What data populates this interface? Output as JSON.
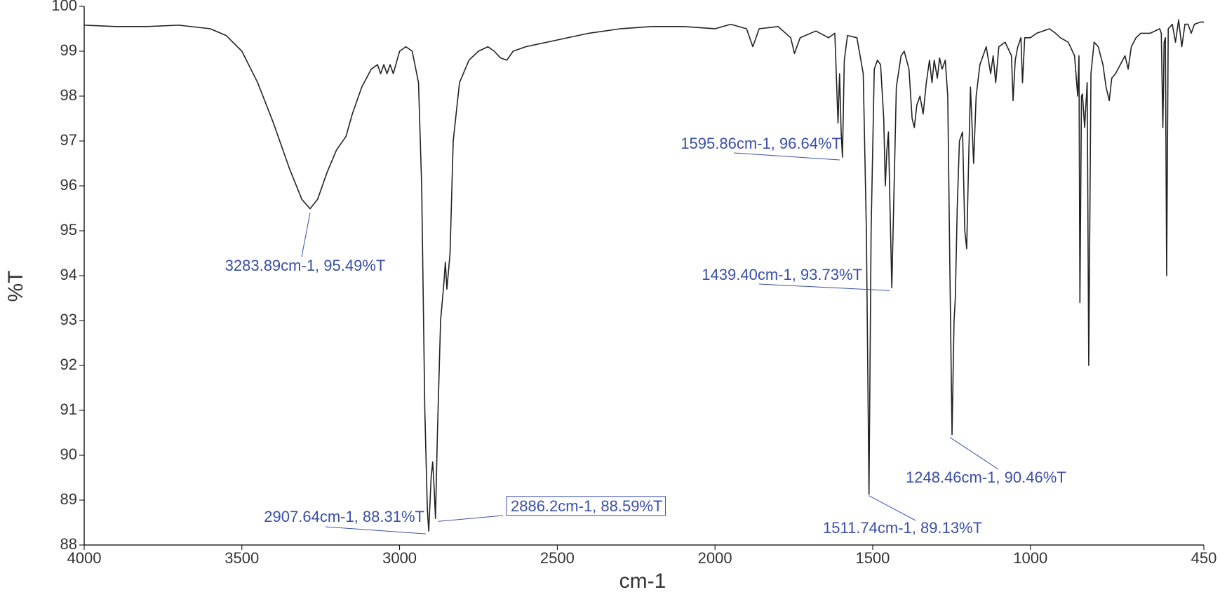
{
  "chart_data": {
    "type": "line",
    "x_label": "cm-1",
    "y_label": "%T",
    "color": "#222222",
    "annotation_color": "#3a4fa8",
    "xlim": [
      4000,
      450
    ],
    "ylim": [
      88,
      100
    ],
    "xticks": [
      4000,
      3500,
      3000,
      2500,
      2000,
      1500,
      1000,
      450
    ],
    "yticks": [
      88,
      89,
      90,
      91,
      92,
      93,
      94,
      95,
      96,
      97,
      98,
      99,
      100
    ],
    "x": [
      4000,
      3900,
      3800,
      3700,
      3600,
      3550,
      3500,
      3450,
      3400,
      3350,
      3310,
      3283.89,
      3260,
      3230,
      3200,
      3170,
      3150,
      3120,
      3090,
      3070,
      3060,
      3050,
      3040,
      3030,
      3020,
      3000,
      2980,
      2960,
      2940,
      2930,
      2920,
      2912,
      2907.64,
      2900,
      2895,
      2890,
      2886.2,
      2880,
      2870,
      2860,
      2855,
      2850,
      2840,
      2830,
      2810,
      2780,
      2750,
      2720,
      2700,
      2680,
      2660,
      2640,
      2600,
      2500,
      2400,
      2300,
      2200,
      2100,
      2000,
      1950,
      1900,
      1880,
      1860,
      1800,
      1760,
      1748,
      1730,
      1680,
      1640,
      1620,
      1610,
      1605,
      1600,
      1595.86,
      1590,
      1580,
      1550,
      1530,
      1520,
      1511.74,
      1505,
      1495,
      1485,
      1475,
      1465,
      1460,
      1455,
      1450,
      1445,
      1439.4,
      1432,
      1425,
      1410,
      1400,
      1385,
      1375,
      1368,
      1360,
      1350,
      1340,
      1330,
      1320,
      1312,
      1305,
      1295,
      1288,
      1280,
      1270,
      1262,
      1255,
      1248.46,
      1242,
      1238,
      1232,
      1225,
      1215,
      1208,
      1202,
      1196,
      1190,
      1180,
      1172,
      1160,
      1150,
      1140,
      1126,
      1118,
      1110,
      1100,
      1080,
      1060,
      1055,
      1048,
      1040,
      1030,
      1025,
      1018,
      1000,
      980,
      960,
      940,
      920,
      905,
      880,
      860,
      850,
      846,
      843,
      838,
      835,
      828,
      820,
      815,
      808,
      798,
      785,
      770,
      760,
      750,
      742,
      730,
      715,
      700,
      690,
      680,
      665,
      650,
      620,
      590,
      585,
      580,
      576,
      572,
      568,
      563,
      550,
      540,
      530,
      520,
      510,
      500,
      490,
      480,
      460,
      450
    ],
    "values": [
      99.58,
      99.55,
      99.55,
      99.58,
      99.5,
      99.35,
      99.0,
      98.3,
      97.4,
      96.4,
      95.7,
      95.49,
      95.7,
      96.3,
      96.8,
      97.1,
      97.6,
      98.2,
      98.6,
      98.7,
      98.5,
      98.7,
      98.5,
      98.7,
      98.5,
      99.0,
      99.1,
      99.0,
      98.3,
      96.0,
      91.0,
      88.8,
      88.31,
      89.5,
      89.85,
      89.2,
      88.59,
      90.5,
      93.0,
      93.8,
      94.3,
      93.7,
      94.5,
      97.0,
      98.3,
      98.8,
      99.0,
      99.1,
      99.0,
      98.85,
      98.8,
      99.0,
      99.1,
      99.25,
      99.4,
      99.5,
      99.55,
      99.55,
      99.5,
      99.6,
      99.5,
      99.1,
      99.5,
      99.55,
      99.3,
      98.95,
      99.3,
      99.45,
      99.3,
      99.4,
      97.4,
      98.5,
      97.2,
      96.64,
      98.8,
      99.35,
      99.3,
      98.5,
      95.0,
      89.13,
      95.0,
      98.6,
      98.8,
      98.7,
      97.5,
      96.0,
      96.8,
      97.2,
      95.5,
      93.73,
      96.0,
      98.2,
      98.9,
      99.0,
      98.6,
      97.5,
      97.3,
      97.8,
      98.0,
      97.6,
      98.3,
      98.8,
      98.3,
      98.8,
      98.4,
      98.85,
      98.6,
      98.8,
      98.0,
      94.0,
      90.46,
      93.0,
      93.5,
      95.5,
      97.0,
      97.2,
      95.0,
      94.6,
      96.5,
      98.2,
      96.5,
      98.0,
      98.7,
      98.9,
      99.1,
      98.5,
      98.9,
      98.3,
      99.1,
      99.2,
      98.9,
      97.9,
      98.8,
      99.1,
      99.3,
      98.3,
      99.3,
      99.3,
      99.4,
      99.45,
      99.5,
      99.4,
      99.3,
      99.2,
      98.9,
      98.0,
      98.9,
      93.4,
      98.0,
      98.05,
      97.3,
      98.3,
      92.0,
      98.5,
      99.2,
      99.1,
      98.7,
      98.2,
      97.9,
      98.4,
      98.5,
      98.7,
      98.9,
      98.6,
      99.1,
      99.3,
      99.4,
      99.4,
      99.5,
      99.4,
      97.3,
      99.2,
      99.3,
      94.0,
      99.5,
      99.6,
      99.2,
      99.7,
      99.1,
      99.6,
      99.6,
      99.4,
      99.6,
      99.65,
      99.65
    ],
    "annotations": [
      {
        "text": "3283.89cm-1, 95.49%T",
        "x": 3283.89,
        "y": 95.49
      },
      {
        "text": "2907.64cm-1, 88.31%T",
        "x": 2907.64,
        "y": 88.31
      },
      {
        "text": "2886.2cm-1, 88.59%T",
        "x": 2886.2,
        "y": 88.59,
        "boxed": true
      },
      {
        "text": "1595.86cm-1, 96.64%T",
        "x": 1595.86,
        "y": 96.64
      },
      {
        "text": "1439.40cm-1, 93.73%T",
        "x": 1439.4,
        "y": 93.73
      },
      {
        "text": "1511.74cm-1, 89.13%T",
        "x": 1511.74,
        "y": 89.13
      },
      {
        "text": "1248.46cm-1, 90.46%T",
        "x": 1248.46,
        "y": 90.46
      }
    ]
  }
}
